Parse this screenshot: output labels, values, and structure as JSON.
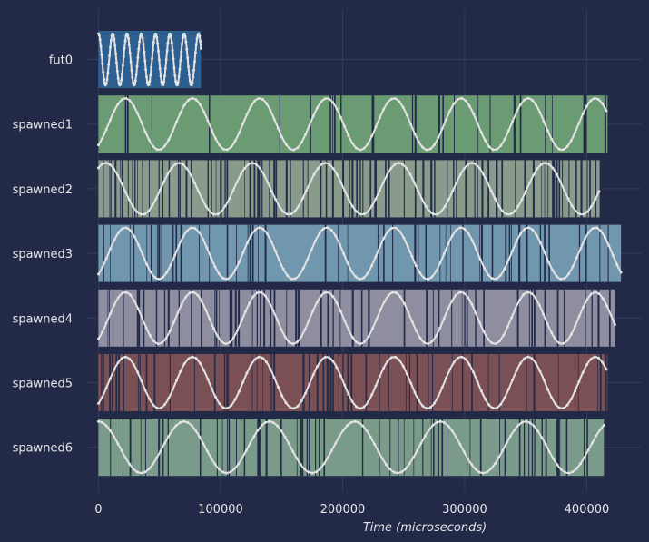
{
  "chart_data": {
    "type": "timeline",
    "xlabel": "Time (microseconds)",
    "xlim": [
      -10000,
      445000
    ],
    "x_ticks": [
      0,
      100000,
      200000,
      300000,
      400000
    ],
    "x_tick_labels": [
      "0",
      "100000",
      "200000",
      "300000",
      "400000"
    ],
    "grid": true,
    "series": [
      {
        "name": "fut0",
        "start": 0,
        "end": 84000,
        "color": "#2d5f91",
        "stripe_density": 0.0,
        "wave_period": 11700,
        "wave_phase": 0.25,
        "wave_x_end": 84000
      },
      {
        "name": "spawned1",
        "start": 0,
        "end": 417000,
        "color": "#6b9b72",
        "stripe_density": 0.22,
        "wave_period": 55000,
        "wave_phase": 0.85,
        "wave_x_end": 416000
      },
      {
        "name": "spawned2",
        "start": 0,
        "end": 411000,
        "color": "#8a9b8c",
        "stripe_density": 0.55,
        "wave_period": 60000,
        "wave_phase": 0.15,
        "wave_x_end": 410000
      },
      {
        "name": "spawned3",
        "start": 0,
        "end": 428000,
        "color": "#7097ad",
        "stripe_density": 0.35,
        "wave_period": 55000,
        "wave_phase": 0.85,
        "wave_x_end": 428000
      },
      {
        "name": "spawned4",
        "start": 0,
        "end": 423000,
        "color": "#8e8ea0",
        "stripe_density": 0.3,
        "wave_period": 55000,
        "wave_phase": 0.85,
        "wave_x_end": 423000
      },
      {
        "name": "spawned5",
        "start": 0,
        "end": 417000,
        "color": "#7a5054",
        "stripe_density": 0.3,
        "wave_period": 55000,
        "wave_phase": 0.85,
        "wave_x_end": 416000
      },
      {
        "name": "spawned6",
        "start": 0,
        "end": 414000,
        "color": "#7a9a8a",
        "stripe_density": 0.4,
        "wave_period": 70000,
        "wave_phase": 0.25,
        "wave_x_end": 414000
      }
    ]
  },
  "colors": {
    "background": "#222a47",
    "grid": "#333c5c",
    "gap": "#232b4a",
    "wave": "#e2e2e2",
    "text": "#e6e6ea"
  }
}
